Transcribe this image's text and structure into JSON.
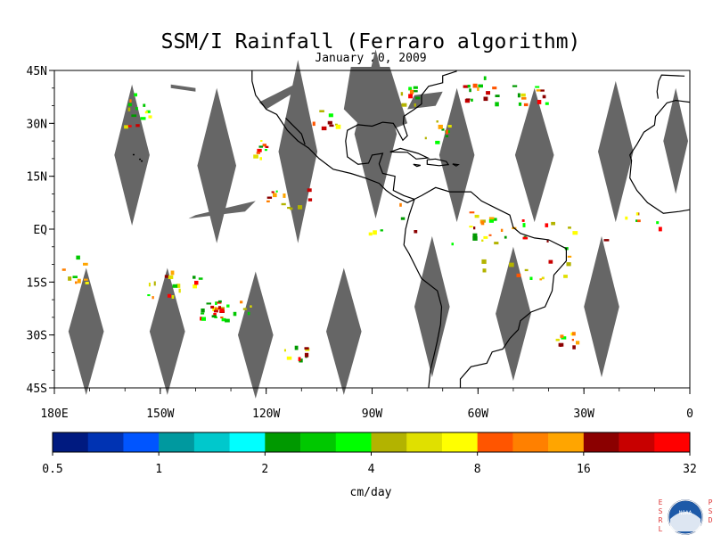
{
  "title": "SSM/I Rainfall (Ferraro algorithm)",
  "subtitle": "January 20, 2009",
  "map": {
    "lon_range": [
      -180,
      0
    ],
    "lat_range": [
      -45,
      45
    ],
    "lat_ticks": [
      {
        "lat": 45,
        "label": "45N"
      },
      {
        "lat": 30,
        "label": "30N"
      },
      {
        "lat": 15,
        "label": "15N"
      },
      {
        "lat": 0,
        "label": "EQ"
      },
      {
        "lat": -15,
        "label": "15S"
      },
      {
        "lat": -30,
        "label": "30S"
      },
      {
        "lat": -45,
        "label": "45S"
      }
    ],
    "lon_ticks": [
      {
        "lon": -180,
        "label": "180E"
      },
      {
        "lon": -150,
        "label": "150W"
      },
      {
        "lon": -120,
        "label": "120W"
      },
      {
        "lon": -90,
        "label": "90W"
      },
      {
        "lon": -60,
        "label": "60W"
      },
      {
        "lon": -30,
        "label": "30W"
      },
      {
        "lon": 0,
        "label": "0"
      }
    ],
    "missing_data_color": "#666666",
    "coastline_color": "#000000"
  },
  "colorbar": {
    "colors": [
      "#001a80",
      "#0033b3",
      "#0055ff",
      "#00999f",
      "#00c8cc",
      "#00ffff",
      "#009900",
      "#00c800",
      "#00ff00",
      "#b3b300",
      "#e0e000",
      "#ffff00",
      "#ff5500",
      "#ff8000",
      "#ffa500",
      "#8b0000",
      "#c80000",
      "#ff0000"
    ],
    "labels": [
      "0.5",
      "1",
      "2",
      "4",
      "8",
      "16",
      "32"
    ],
    "unit": "cm/day"
  },
  "logo": {
    "left_text": "ESRL",
    "right_text": "PSD",
    "center_text": "NOAA"
  }
}
